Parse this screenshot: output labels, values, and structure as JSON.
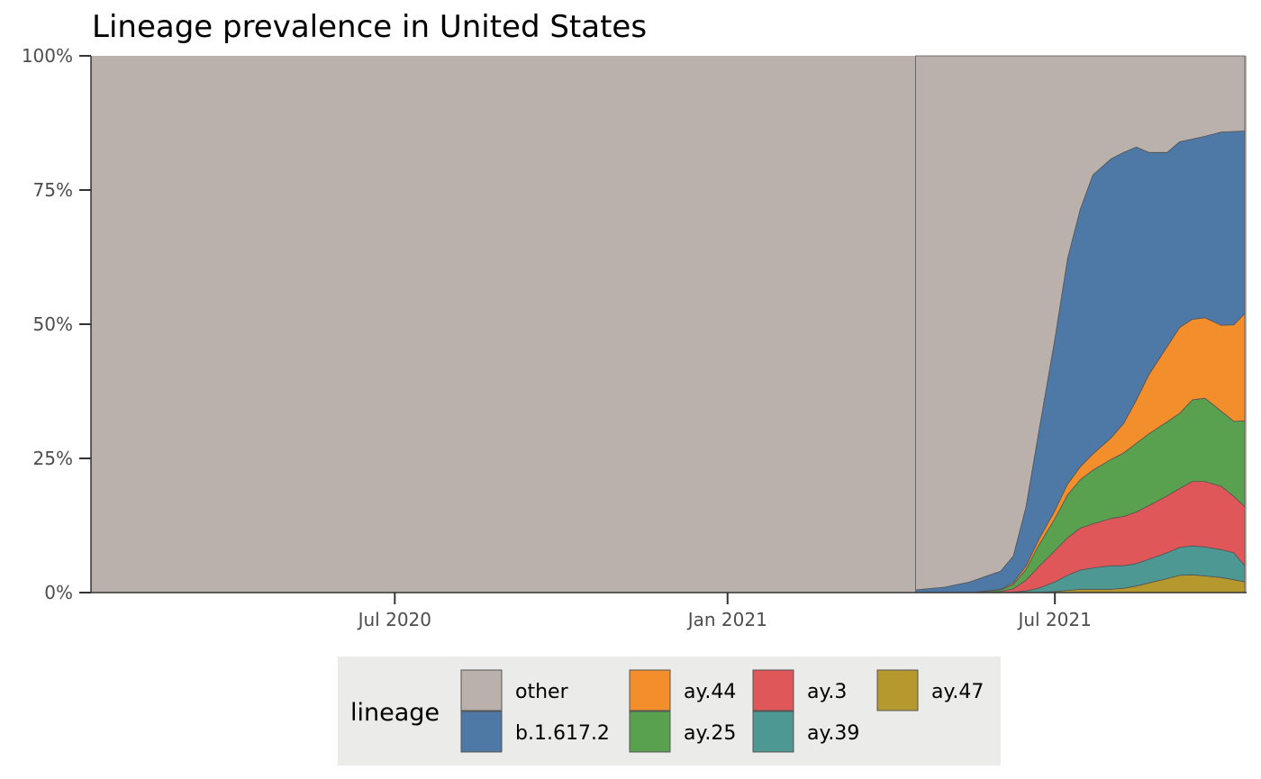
{
  "chart_data": {
    "type": "area",
    "stacked": true,
    "normalized": true,
    "title": "Lineage prevalence in United States",
    "xlabel": "",
    "ylabel": "",
    "ylim": [
      0,
      1
    ],
    "xlim": [
      "2020-01-15",
      "2021-10-15"
    ],
    "x_ticks": [
      {
        "date": "2020-07-01",
        "label": "Jul 2020"
      },
      {
        "date": "2021-01-01",
        "label": "Jan 2021"
      },
      {
        "date": "2021-07-01",
        "label": "Jul 2021"
      }
    ],
    "y_ticks": [
      {
        "value": 0,
        "label": "0%"
      },
      {
        "value": 0.25,
        "label": "25%"
      },
      {
        "value": 0.5,
        "label": "50%"
      },
      {
        "value": 0.75,
        "label": "75%"
      },
      {
        "value": 1,
        "label": "100%"
      }
    ],
    "grid": false,
    "legend_position": "bottom",
    "legend_title": "lineage",
    "x": [
      "2021-04-15",
      "2021-05-01",
      "2021-05-15",
      "2021-06-01",
      "2021-06-08",
      "2021-06-15",
      "2021-06-22",
      "2021-07-01",
      "2021-07-08",
      "2021-07-15",
      "2021-07-22",
      "2021-08-01",
      "2021-08-08",
      "2021-08-15",
      "2021-08-22",
      "2021-09-01",
      "2021-09-08",
      "2021-09-15",
      "2021-09-22",
      "2021-10-01",
      "2021-10-08",
      "2021-10-14"
    ],
    "series": [
      {
        "name": "ay.47",
        "color": "#b5982e",
        "values": [
          0,
          0,
          0,
          0,
          0,
          0,
          0,
          0.002,
          0.004,
          0.006,
          0.006,
          0.006,
          0.008,
          0.012,
          0.018,
          0.026,
          0.032,
          0.033,
          0.031,
          0.028,
          0.024,
          0.02
        ]
      },
      {
        "name": "ay.39",
        "color": "#4d9893",
        "values": [
          0,
          0,
          0,
          0,
          0.001,
          0.003,
          0.008,
          0.018,
          0.028,
          0.036,
          0.04,
          0.044,
          0.042,
          0.042,
          0.044,
          0.048,
          0.052,
          0.054,
          0.054,
          0.052,
          0.05,
          0.03
        ]
      },
      {
        "name": "ay.3",
        "color": "#e05759",
        "values": [
          0,
          0,
          0,
          0.002,
          0.006,
          0.02,
          0.04,
          0.058,
          0.07,
          0.078,
          0.082,
          0.088,
          0.092,
          0.096,
          0.1,
          0.106,
          0.11,
          0.12,
          0.122,
          0.118,
          0.105,
          0.11
        ]
      },
      {
        "name": "ay.25",
        "color": "#59a14f",
        "values": [
          0,
          0,
          0,
          0.003,
          0.008,
          0.02,
          0.04,
          0.06,
          0.08,
          0.09,
          0.1,
          0.11,
          0.118,
          0.128,
          0.134,
          0.138,
          0.14,
          0.152,
          0.155,
          0.14,
          0.14,
          0.16
        ]
      },
      {
        "name": "ay.44",
        "color": "#f28e2b",
        "values": [
          0,
          0,
          0,
          0.001,
          0.003,
          0.006,
          0.01,
          0.015,
          0.02,
          0.024,
          0.03,
          0.04,
          0.055,
          0.08,
          0.11,
          0.14,
          0.16,
          0.15,
          0.15,
          0.16,
          0.18,
          0.2
        ]
      },
      {
        "name": "b.1.617.2",
        "color": "#4e79a7",
        "values": [
          0.005,
          0.01,
          0.02,
          0.034,
          0.05,
          0.11,
          0.2,
          0.32,
          0.42,
          0.48,
          0.52,
          0.52,
          0.505,
          0.472,
          0.414,
          0.362,
          0.346,
          0.336,
          0.338,
          0.36,
          0.36,
          0.34
        ]
      },
      {
        "name": "other",
        "color": "#bab0ac",
        "values": [
          0.995,
          0.99,
          0.98,
          0.96,
          0.932,
          0.841,
          0.702,
          0.527,
          0.378,
          0.286,
          0.222,
          0.192,
          0.18,
          0.17,
          0.18,
          0.18,
          0.16,
          0.155,
          0.15,
          0.142,
          0.141,
          0.14
        ]
      }
    ],
    "legend_items": [
      {
        "name": "other",
        "color": "#bab0ac"
      },
      {
        "name": "b.1.617.2",
        "color": "#4e79a7"
      },
      {
        "name": "ay.44",
        "color": "#f28e2b"
      },
      {
        "name": "ay.25",
        "color": "#59a14f"
      },
      {
        "name": "ay.3",
        "color": "#e05759"
      },
      {
        "name": "ay.39",
        "color": "#4d9893"
      },
      {
        "name": "ay.47",
        "color": "#b5982e"
      }
    ],
    "background_color": "#bab0ac",
    "legend_background": "#ebebe9"
  }
}
